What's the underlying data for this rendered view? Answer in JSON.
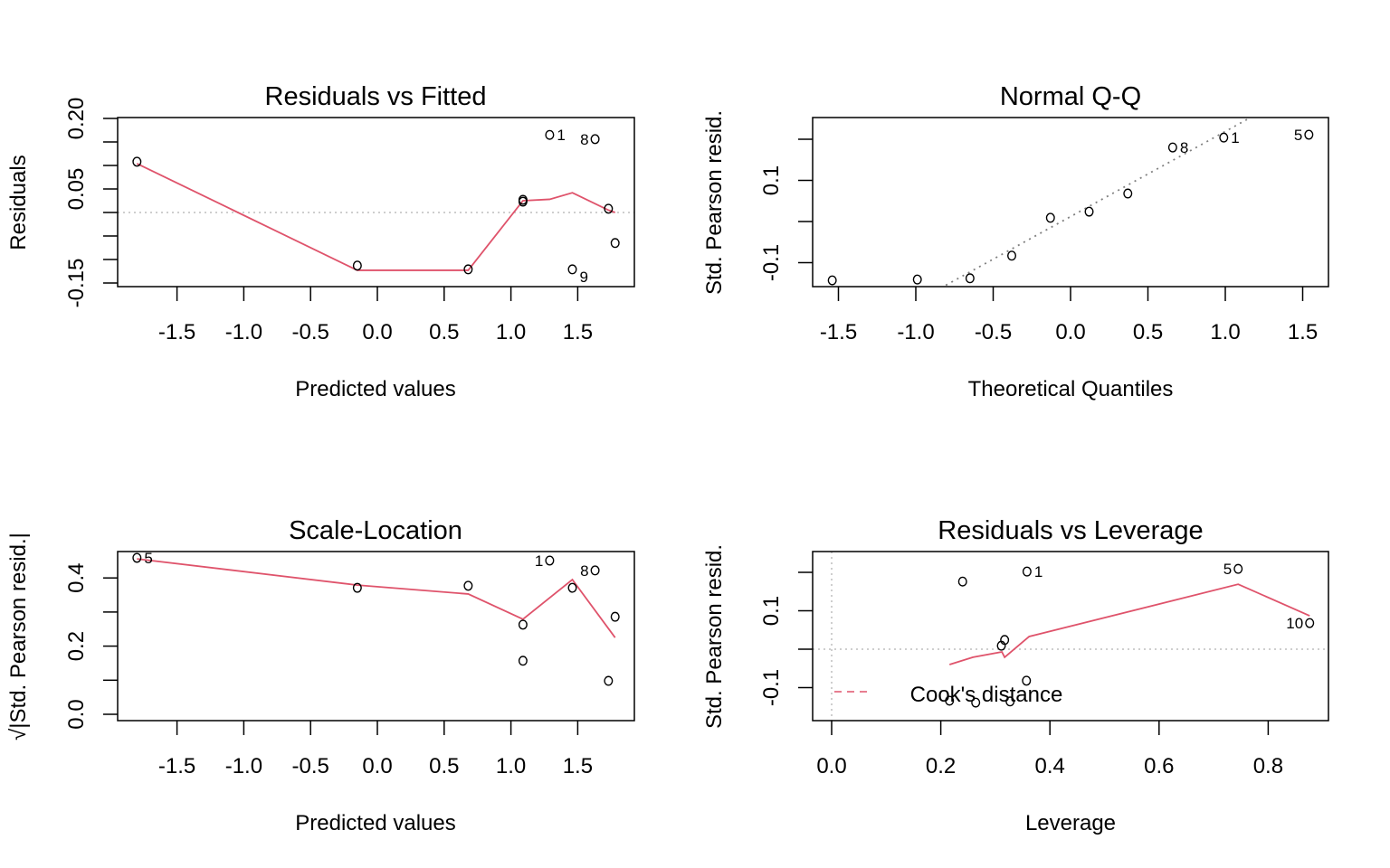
{
  "colors": {
    "smooth": "#DF536B",
    "points": "#000000",
    "reference": "#808080",
    "zero_line": "#BEBEBE"
  },
  "chart_data": [
    {
      "type": "scatter",
      "title": "Residuals vs Fitted",
      "xlabel": "Predicted values",
      "ylabel": "Residuals",
      "xticks": [
        -1.5,
        -1.0,
        -0.5,
        0.0,
        0.5,
        1.0,
        1.5
      ],
      "xtick_labels": [
        "-1.5",
        "-1.0",
        "-0.5",
        "0.0",
        "0.5",
        "1.0",
        "1.5"
      ],
      "yticks": [
        -0.15,
        -0.1,
        -0.05,
        0.0,
        0.05,
        0.1,
        0.15,
        0.2
      ],
      "ytick_labels": {
        "-0.15": "-0.15",
        "0.05": "0.05",
        "0.2": "0.20"
      },
      "points": [
        {
          "x": -1.8,
          "y": 0.108
        },
        {
          "x": -0.15,
          "y": -0.113
        },
        {
          "x": 0.68,
          "y": -0.121
        },
        {
          "x": 1.09,
          "y": 0.027
        },
        {
          "x": 1.09,
          "y": 0.023
        },
        {
          "x": 1.29,
          "y": 0.165,
          "label": "1",
          "label_pos": "right"
        },
        {
          "x": 1.63,
          "y": 0.156,
          "label": "8",
          "label_pos": "left"
        },
        {
          "x": 1.46,
          "y": -0.121,
          "label": "9",
          "label_pos": "below-right"
        },
        {
          "x": 1.73,
          "y": 0.008
        },
        {
          "x": 1.78,
          "y": -0.065
        }
      ],
      "smooth": {
        "x": [
          -1.8,
          -0.15,
          0.68,
          1.09,
          1.29,
          1.46,
          1.73,
          1.78
        ],
        "y": [
          0.104,
          -0.123,
          -0.123,
          0.025,
          0.028,
          0.042,
          0.005,
          0.0
        ]
      },
      "hline": 0
    },
    {
      "type": "scatter",
      "title": "Normal Q-Q",
      "xlabel": "Theoretical Quantiles",
      "ylabel": "Std. Pearson resid.",
      "xticks": [
        -1.5,
        -1.0,
        -0.5,
        0.0,
        0.5,
        1.0,
        1.5
      ],
      "xtick_labels": [
        "-1.5",
        "-1.0",
        "-0.5",
        "0.0",
        "0.5",
        "1.0",
        "1.5"
      ],
      "yticks": [
        -0.1,
        0.0,
        0.1,
        0.2
      ],
      "ytick_labels": {
        "-0.1": "-0.1",
        "0.1": "0.1"
      },
      "points": [
        {
          "x": -1.54,
          "y": -0.143
        },
        {
          "x": -0.99,
          "y": -0.141
        },
        {
          "x": -0.65,
          "y": -0.138
        },
        {
          "x": -0.38,
          "y": -0.083
        },
        {
          "x": -0.13,
          "y": 0.009
        },
        {
          "x": 0.12,
          "y": 0.024
        },
        {
          "x": 0.37,
          "y": 0.068
        },
        {
          "x": 0.66,
          "y": 0.18,
          "label": "8",
          "label_pos": "right"
        },
        {
          "x": 0.99,
          "y": 0.204,
          "label": "1",
          "label_pos": "right"
        },
        {
          "x": 1.54,
          "y": 0.211,
          "label": "5",
          "label_pos": "left"
        }
      ],
      "reference_line": {
        "intercept": 0.012,
        "slope": 0.207
      }
    },
    {
      "type": "scatter",
      "title": "Scale-Location",
      "xlabel": "Predicted values",
      "ylabel": "√|Std. Pearson resid.|",
      "xticks": [
        -1.5,
        -1.0,
        -0.5,
        0.0,
        0.5,
        1.0,
        1.5
      ],
      "xtick_labels": [
        "-1.5",
        "-1.0",
        "-0.5",
        "0.0",
        "0.5",
        "1.0",
        "1.5"
      ],
      "yticks": [
        0.0,
        0.1,
        0.2,
        0.3,
        0.4
      ],
      "ytick_labels": {
        "0": "0.0",
        "0.2": "0.2",
        "0.4": "0.4"
      },
      "points": [
        {
          "x": -1.8,
          "y": 0.459,
          "label": "5",
          "label_pos": "right"
        },
        {
          "x": -0.15,
          "y": 0.371
        },
        {
          "x": 0.68,
          "y": 0.377
        },
        {
          "x": 1.09,
          "y": 0.263
        },
        {
          "x": 1.09,
          "y": 0.157
        },
        {
          "x": 1.29,
          "y": 0.451,
          "label": "1",
          "label_pos": "left"
        },
        {
          "x": 1.63,
          "y": 0.422,
          "label": "8",
          "label_pos": "left"
        },
        {
          "x": 1.46,
          "y": 0.371
        },
        {
          "x": 1.78,
          "y": 0.286
        },
        {
          "x": 1.73,
          "y": 0.098
        }
      ],
      "smooth": {
        "x": [
          -1.8,
          -0.15,
          0.68,
          1.09,
          1.46,
          1.78
        ],
        "y": [
          0.456,
          0.379,
          0.353,
          0.279,
          0.395,
          0.225
        ]
      }
    },
    {
      "type": "scatter",
      "title": "Residuals vs Leverage",
      "xlabel": "Leverage",
      "ylabel": "Std. Pearson resid.",
      "xticks": [
        0.0,
        0.2,
        0.4,
        0.6,
        0.8
      ],
      "xtick_labels": [
        "0.0",
        "0.2",
        "0.4",
        "0.6",
        "0.8"
      ],
      "yticks": [
        -0.1,
        0.0,
        0.1,
        0.2
      ],
      "ytick_labels": {
        "-0.1": "-0.1",
        "0.1": "0.1"
      },
      "points": [
        {
          "x": 0.24,
          "y": 0.176
        },
        {
          "x": 0.358,
          "y": 0.202,
          "label": "1",
          "label_pos": "right"
        },
        {
          "x": 0.745,
          "y": 0.209,
          "label": "5",
          "label_pos": "left"
        },
        {
          "x": 0.876,
          "y": 0.068,
          "label": "10",
          "label_pos": "left"
        },
        {
          "x": 0.317,
          "y": 0.024
        },
        {
          "x": 0.311,
          "y": 0.009
        },
        {
          "x": 0.357,
          "y": -0.082
        },
        {
          "x": 0.216,
          "y": -0.134
        },
        {
          "x": 0.264,
          "y": -0.139
        },
        {
          "x": 0.327,
          "y": -0.136
        }
      ],
      "smooth": {
        "x": [
          0.216,
          0.259,
          0.312,
          0.317,
          0.362,
          0.745,
          0.876
        ],
        "y": [
          -0.04,
          -0.021,
          -0.007,
          -0.021,
          0.033,
          0.169,
          0.087
        ]
      },
      "hline": 0,
      "vline": 0,
      "legend": {
        "label": "Cook's distance",
        "style": "dashed",
        "placement": "bottom-left"
      }
    }
  ]
}
